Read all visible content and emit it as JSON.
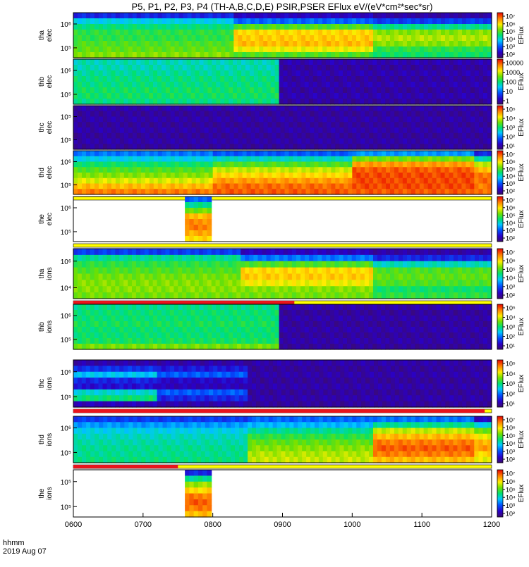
{
  "title": "P5, P1, P2, P3, P4 (TH-A,B,C,D,E) PSIR,PSER EFlux eV/(eV*cm²*sec*sr)",
  "time_axis": {
    "label_line1": "hhmm",
    "label_line2": "2019 Aug 07",
    "ticks": [
      "0600",
      "0700",
      "0800",
      "0900",
      "1000",
      "1100",
      "1200"
    ],
    "range_hours": [
      6,
      12
    ]
  },
  "colorbar_label": "EFlux",
  "colors": {
    "background": "#ffffff",
    "flag_red": "#e8141c",
    "flag_yellow": "#ffff00",
    "fill_purple": "#3c0a6e"
  },
  "chart_data": {
    "type": "heatmap",
    "x_units": "hours UT",
    "panels": [
      {
        "id": "tha_elec",
        "ylabel": [
          "tha",
          "elec"
        ],
        "ytick_labels": [
          "10⁶",
          "10⁵"
        ],
        "cbar_ticks": [
          "10⁷",
          "10⁶",
          "10⁵",
          "10⁴",
          "10³",
          "10²"
        ],
        "cbar_log_range": [
          2,
          7.5
        ],
        "data_range": [
          6.0,
          12.0
        ],
        "bands": [
          {
            "from": 6.0,
            "to": 8.3,
            "levels": [
              3.0,
              4.2,
              4.7,
              5.0,
              5.0,
              5.2,
              5.3,
              5.5
            ]
          },
          {
            "from": 8.3,
            "to": 10.3,
            "levels": [
              2.6,
              3.5,
              5.2,
              6.2,
              6.3,
              6.4,
              6.0,
              5.2
            ]
          },
          {
            "from": 10.3,
            "to": 12.0,
            "levels": [
              2.4,
              3.2,
              4.6,
              5.5,
              5.7,
              5.5,
              5.0,
              4.8
            ]
          }
        ],
        "flag": null
      },
      {
        "id": "thb_elec",
        "ylabel": [
          "thb",
          "elec"
        ],
        "ytick_labels": [
          "10⁶",
          "10⁵"
        ],
        "cbar_ticks": [
          "10000",
          "1000",
          "100",
          "10",
          "1"
        ],
        "cbar_log_range": [
          0,
          4.5
        ],
        "data_range": [
          6.0,
          9.0
        ],
        "bands": [
          {
            "from": 6.0,
            "to": 8.95,
            "levels": [
              2.0,
              2.0,
              2.1,
              2.2,
              2.2,
              2.3,
              2.3,
              2.2
            ]
          },
          {
            "from": 8.95,
            "to": 12.0,
            "levels": [
              0.4,
              0.3,
              0.4,
              0.3,
              0.4,
              0.3,
              0.4,
              0.3
            ]
          }
        ],
        "flag": null
      },
      {
        "id": "thc_elec",
        "ylabel": [
          "thc",
          "elec"
        ],
        "ytick_labels": [
          "10⁵",
          "10⁵"
        ],
        "cbar_ticks": [
          "10⁵",
          "10⁴",
          "10³",
          "10²",
          "10¹"
        ],
        "cbar_log_range": [
          0.5,
          5.5
        ],
        "data_range": [
          6.0,
          12.0
        ],
        "bands": [
          {
            "from": 6.0,
            "to": 12.0,
            "levels": [
              0.9,
              0.8,
              0.9,
              0.8,
              0.9,
              0.8,
              0.9,
              0.8
            ]
          }
        ],
        "flag": null
      },
      {
        "id": "thd_elec",
        "ylabel": [
          "thd",
          "elec"
        ],
        "ytick_labels": [
          "10⁶",
          "10⁵"
        ],
        "cbar_ticks": [
          "10⁷",
          "10⁶",
          "10⁵",
          "10⁴",
          "10³",
          "10²"
        ],
        "cbar_log_range": [
          2,
          7.5
        ],
        "data_range": [
          6.0,
          12.0
        ],
        "bands": [
          {
            "from": 6.0,
            "to": 8.0,
            "levels": [
              3.6,
              4.2,
              4.8,
              5.2,
              5.5,
              5.9,
              6.4,
              6.8
            ]
          },
          {
            "from": 8.0,
            "to": 10.0,
            "levels": [
              3.4,
              4.4,
              5.2,
              5.8,
              6.2,
              6.6,
              6.9,
              7.0
            ]
          },
          {
            "from": 10.0,
            "to": 11.75,
            "levels": [
              3.8,
              5.4,
              6.6,
              7.0,
              7.1,
              7.1,
              7.1,
              7.0
            ]
          },
          {
            "from": 11.75,
            "to": 12.0,
            "levels": [
              3.0,
              4.5,
              5.8,
              6.4,
              6.8,
              6.9,
              6.8,
              6.9
            ]
          }
        ],
        "flag": {
          "red_until": 6.0,
          "color": "yellow"
        }
      },
      {
        "id": "the_elec",
        "ylabel": [
          "the",
          "elec"
        ],
        "ytick_labels": [
          "10⁶",
          "10⁵"
        ],
        "cbar_ticks": [
          "10⁷",
          "10⁶",
          "10⁵",
          "10⁴",
          "10³",
          "10²"
        ],
        "cbar_log_range": [
          2,
          7.5
        ],
        "data_range": [
          7.6,
          7.98
        ],
        "bands": [
          {
            "from": 7.6,
            "to": 7.98,
            "levels": [
              3.5,
              4.6,
              5.4,
              6.4,
              6.7,
              6.8,
              6.5,
              6.2
            ]
          }
        ],
        "flag": null
      },
      {
        "id": "tha_ions",
        "ylabel": [
          "tha",
          "ions"
        ],
        "ytick_labels": [
          "10⁶",
          "10⁴"
        ],
        "cbar_ticks": [
          "10⁷",
          "10⁶",
          "10⁵",
          "10⁴",
          "10³",
          "10²"
        ],
        "cbar_log_range": [
          2,
          7.5
        ],
        "data_range": [
          6.0,
          12.0
        ],
        "bands": [
          {
            "from": 6.0,
            "to": 8.4,
            "levels": [
              3.2,
              4.6,
              5.0,
              5.2,
              5.4,
              5.5,
              5.5,
              5.4
            ]
          },
          {
            "from": 8.4,
            "to": 10.3,
            "levels": [
              2.6,
              3.6,
              5.2,
              6.2,
              6.3,
              6.0,
              5.5,
              5.4
            ]
          },
          {
            "from": 10.3,
            "to": 12.0,
            "levels": [
              2.4,
              3.0,
              4.4,
              5.2,
              5.3,
              5.2,
              4.8,
              5.0
            ]
          }
        ],
        "flag": {
          "red_until": 9.17,
          "color": "yellow"
        }
      },
      {
        "id": "thb_ions",
        "ylabel": [
          "thb",
          "ions"
        ],
        "ytick_labels": [
          "10⁶",
          "10⁵"
        ],
        "cbar_ticks": [
          "10⁵",
          "10⁴",
          "10³",
          "10²",
          "10¹"
        ],
        "cbar_log_range": [
          0.5,
          5.5
        ],
        "data_range": [
          6.0,
          9.0
        ],
        "bands": [
          {
            "from": 6.0,
            "to": 8.95,
            "levels": [
              2.9,
              3.0,
              3.0,
              3.1,
              3.0,
              3.0,
              3.1,
              3.6
            ]
          },
          {
            "from": 8.95,
            "to": 12.0,
            "levels": [
              0.9,
              0.8,
              0.9,
              0.8,
              0.9,
              0.8,
              0.9,
              0.8
            ]
          }
        ],
        "flag": null
      },
      {
        "id": "thc_ions",
        "ylabel": [
          "thc",
          "ions"
        ],
        "ytick_labels": [
          "10⁶",
          "10⁵"
        ],
        "cbar_ticks": [
          "10⁵",
          "10⁴",
          "10³",
          "10²",
          "10¹"
        ],
        "cbar_log_range": [
          0.5,
          5.5
        ],
        "data_range": [
          6.0,
          12.0
        ],
        "bands": [
          {
            "from": 6.0,
            "to": 7.2,
            "levels": [
              0.9,
              1.5,
              2.4,
              1.4,
              1.2,
              2.6,
              3.0,
              1.0
            ]
          },
          {
            "from": 7.2,
            "to": 8.5,
            "levels": [
              0.9,
              1.3,
              1.8,
              1.1,
              1.0,
              1.8,
              1.4,
              0.9
            ]
          },
          {
            "from": 8.5,
            "to": 12.0,
            "levels": [
              0.9,
              0.8,
              0.9,
              0.8,
              0.9,
              0.8,
              0.9,
              0.8
            ]
          }
        ],
        "flag": {
          "red_until": 11.9,
          "color": "yellow"
        }
      },
      {
        "id": "thd_ions",
        "ylabel": [
          "thd",
          "ions"
        ],
        "ytick_labels": [
          "10⁶",
          "10⁵"
        ],
        "cbar_ticks": [
          "10⁷",
          "10⁶",
          "10⁵",
          "10⁴",
          "10³",
          "10²"
        ],
        "cbar_log_range": [
          2,
          7.5
        ],
        "data_range": [
          6.0,
          12.0
        ],
        "bands": [
          {
            "from": 6.0,
            "to": 8.5,
            "levels": [
              3.2,
              3.8,
              4.2,
              4.4,
              4.5,
              4.6,
              4.6,
              4.7
            ]
          },
          {
            "from": 8.5,
            "to": 10.3,
            "levels": [
              3.5,
              4.0,
              4.6,
              5.0,
              5.3,
              5.5,
              5.7,
              5.8
            ]
          },
          {
            "from": 10.3,
            "to": 11.75,
            "levels": [
              3.6,
              4.6,
              5.8,
              6.4,
              6.8,
              7.0,
              6.8,
              6.4
            ]
          },
          {
            "from": 11.75,
            "to": 12.0,
            "levels": [
              2.6,
              4.2,
              5.4,
              6.0,
              6.4,
              6.6,
              6.2,
              6.0
            ]
          }
        ],
        "flag": {
          "red_until": 7.5,
          "color": "yellow"
        }
      },
      {
        "id": "the_ions",
        "ylabel": [
          "the",
          "ions"
        ],
        "ytick_labels": [
          "10⁵",
          "10⁵"
        ],
        "cbar_ticks": [
          "10⁷",
          "10⁶",
          "10⁵",
          "10⁴",
          "10³",
          "10²"
        ],
        "cbar_log_range": [
          2,
          7.5
        ],
        "data_range": [
          7.6,
          7.98
        ],
        "bands": [
          {
            "from": 7.6,
            "to": 7.98,
            "levels": [
              3.0,
              4.6,
              5.6,
              6.2,
              6.8,
              7.0,
              6.8,
              6.4
            ]
          }
        ],
        "flag": null
      }
    ]
  }
}
